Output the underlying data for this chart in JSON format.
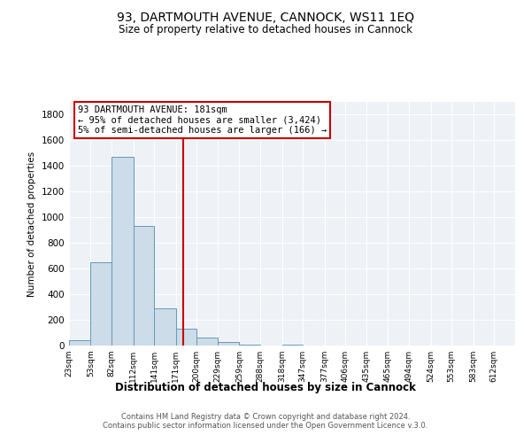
{
  "title": "93, DARTMOUTH AVENUE, CANNOCK, WS11 1EQ",
  "subtitle": "Size of property relative to detached houses in Cannock",
  "xlabel": "Distribution of detached houses by size in Cannock",
  "ylabel": "Number of detached properties",
  "footer_lines": [
    "Contains HM Land Registry data © Crown copyright and database right 2024.",
    "Contains public sector information licensed under the Open Government Licence v.3.0."
  ],
  "bin_labels": [
    "23sqm",
    "53sqm",
    "82sqm",
    "112sqm",
    "141sqm",
    "171sqm",
    "200sqm",
    "229sqm",
    "259sqm",
    "288sqm",
    "318sqm",
    "347sqm",
    "377sqm",
    "406sqm",
    "435sqm",
    "465sqm",
    "494sqm",
    "524sqm",
    "553sqm",
    "583sqm",
    "612sqm"
  ],
  "bar_values": [
    40,
    650,
    1470,
    935,
    290,
    130,
    65,
    25,
    10,
    0,
    10,
    0,
    0,
    0,
    0,
    0,
    0,
    0,
    0,
    0,
    0
  ],
  "bar_color": "#ccdce8",
  "bar_edge_color": "#6699bb",
  "vline_x": 181,
  "vline_color": "#cc0000",
  "bin_edges_sqm": [
    23,
    53,
    82,
    112,
    141,
    171,
    200,
    229,
    259,
    288,
    318,
    347,
    377,
    406,
    435,
    465,
    494,
    524,
    553,
    583,
    612
  ],
  "bin_width": 29,
  "ylim": [
    0,
    1900
  ],
  "yticks": [
    0,
    200,
    400,
    600,
    800,
    1000,
    1200,
    1400,
    1600,
    1800
  ],
  "annotation_title": "93 DARTMOUTH AVENUE: 181sqm",
  "annotation_line1": "← 95% of detached houses are smaller (3,424)",
  "annotation_line2": "5% of semi-detached houses are larger (166) →",
  "bg_color": "#eef2f7",
  "grid_color": "#ffffff",
  "title_fontsize": 10,
  "subtitle_fontsize": 8.5
}
